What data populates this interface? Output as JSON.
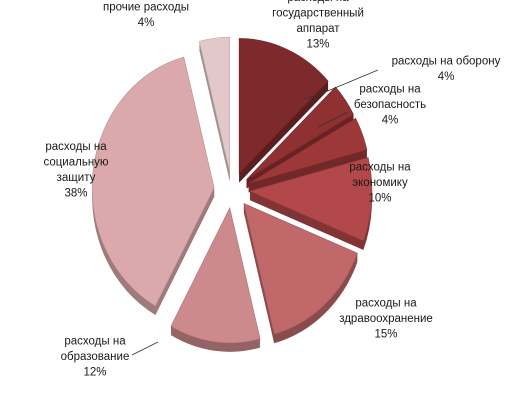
{
  "chart_data": {
    "type": "pie",
    "style": "3d-exploded",
    "title": "",
    "slices": [
      {
        "name": "расходы на государственный аппарат",
        "label_lines": [
          "расходы на",
          "государственный",
          "аппарат"
        ],
        "value": 13,
        "value_label": "13%",
        "color": "#7e2a2c"
      },
      {
        "name": "расходы на оборону",
        "label_lines": [
          "расходы на оборону"
        ],
        "value": 4,
        "value_label": "4%",
        "color": "#8f3032"
      },
      {
        "name": "расходы на безопасность",
        "label_lines": [
          "расходы на",
          "безопасность"
        ],
        "value": 4,
        "value_label": "4%",
        "color": "#9c3838"
      },
      {
        "name": "расходы на экономику",
        "label_lines": [
          "расходы на",
          "экономику"
        ],
        "value": 10,
        "value_label": "10%",
        "color": "#b3484a"
      },
      {
        "name": "расходы на здравоохранение",
        "label_lines": [
          "расходы на",
          "здравоохранение"
        ],
        "value": 15,
        "value_label": "15%",
        "color": "#c0686a"
      },
      {
        "name": "расходы на образование",
        "label_lines": [
          "расходы на",
          "образование"
        ],
        "value": 12,
        "value_label": "12%",
        "color": "#cc8a8c"
      },
      {
        "name": "расходы на социальную защиту",
        "label_lines": [
          "расходы на",
          "социальную",
          "защиту"
        ],
        "value": 38,
        "value_label": "38%",
        "color": "#dba9ab"
      },
      {
        "name": "прочие расходы",
        "label_lines": [
          "прочие расходы"
        ],
        "value": 4,
        "value_label": "4%",
        "color": "#e3c8c9"
      }
    ]
  }
}
